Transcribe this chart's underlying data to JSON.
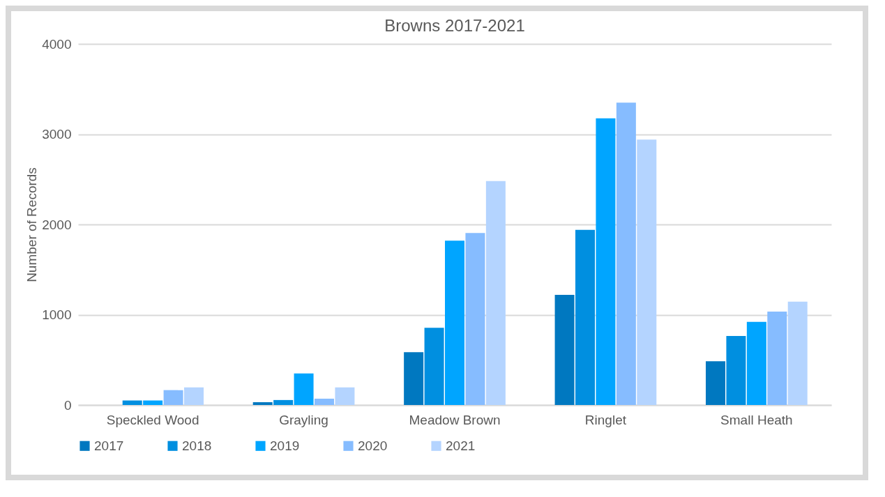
{
  "chart_data": {
    "type": "bar",
    "title": "Browns 2017-2021",
    "ylabel": "Number of Records",
    "categories": [
      "Speckled Wood",
      "Grayling",
      "Meadow Brown",
      "Ringlet",
      "Small Heath"
    ],
    "series": [
      {
        "name": "2017",
        "color": "#0078c0",
        "values": [
          0,
          30,
          585,
          1220,
          485
        ]
      },
      {
        "name": "2018",
        "color": "#008fe0",
        "values": [
          50,
          55,
          855,
          1940,
          765
        ]
      },
      {
        "name": "2019",
        "color": "#00a5ff",
        "values": [
          50,
          350,
          1820,
          3175,
          920
        ]
      },
      {
        "name": "2020",
        "color": "#86bcff",
        "values": [
          165,
          70,
          1905,
          3350,
          1035
        ]
      },
      {
        "name": "2021",
        "color": "#b4d4ff",
        "values": [
          195,
          195,
          2480,
          2940,
          1145
        ]
      }
    ],
    "ylim": [
      0,
      4000
    ],
    "yticks": [
      0,
      1000,
      2000,
      3000,
      4000
    ],
    "grid": "y",
    "legend": "bottom"
  }
}
